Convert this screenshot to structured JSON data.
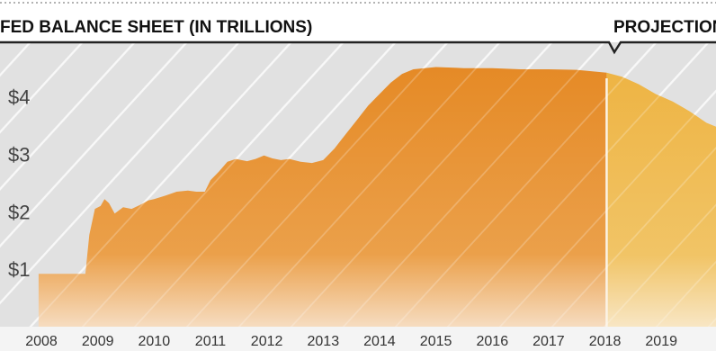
{
  "header": {
    "title": "FED BALANCE SHEET (IN TRILLIONS)",
    "projection_label": "PROJECTION"
  },
  "colors": {
    "actual_fill": "#e8922e",
    "projection_fill": "#f0bb48",
    "background": "#e1e1e1",
    "stripe": "#f6f6f6",
    "rule": "#222222"
  },
  "chart_data": {
    "type": "area",
    "title": "FED BALANCE SHEET (IN TRILLIONS)",
    "ylabel": "",
    "xlabel": "",
    "ylim": [
      0,
      4.95
    ],
    "xlim": [
      2007.95,
      2019.97
    ],
    "y_ticks": [
      1,
      2,
      3,
      4
    ],
    "y_tick_labels": [
      "$1",
      "$2",
      "$3",
      "$4"
    ],
    "x_ticks": [
      2008,
      2009,
      2010,
      2011,
      2012,
      2013,
      2014,
      2015,
      2016,
      2017,
      2018,
      2019
    ],
    "x_tick_labels": [
      "2008",
      "2009",
      "2010",
      "2011",
      "2012",
      "2013",
      "2014",
      "2015",
      "2016",
      "2017",
      "2018",
      "2019"
    ],
    "grid": false,
    "projection_start": 2018.03,
    "series": [
      {
        "segment": "actual",
        "x": [
          2007.95,
          2008.78,
          2008.85,
          2008.95,
          2009.05,
          2009.12,
          2009.2,
          2009.3,
          2009.45,
          2009.6,
          2009.75,
          2009.9,
          2010.0,
          2010.2,
          2010.4,
          2010.6,
          2010.75,
          2010.9,
          2011.0,
          2011.15,
          2011.3,
          2011.45,
          2011.55,
          2011.65,
          2011.8,
          2011.95,
          2012.1,
          2012.25,
          2012.4,
          2012.6,
          2012.8,
          2013.0,
          2013.2,
          2013.4,
          2013.6,
          2013.8,
          2014.0,
          2014.2,
          2014.4,
          2014.6,
          2014.8,
          2015.0,
          2015.5,
          2016.0,
          2016.5,
          2017.0,
          2017.5,
          2018.03
        ],
        "y": [
          0.92,
          0.92,
          1.6,
          2.05,
          2.1,
          2.22,
          2.15,
          1.97,
          2.08,
          2.05,
          2.12,
          2.2,
          2.22,
          2.28,
          2.35,
          2.37,
          2.35,
          2.35,
          2.55,
          2.7,
          2.87,
          2.92,
          2.9,
          2.88,
          2.92,
          2.98,
          2.93,
          2.9,
          2.92,
          2.87,
          2.85,
          2.9,
          3.1,
          3.35,
          3.6,
          3.85,
          4.05,
          4.25,
          4.4,
          4.48,
          4.5,
          4.52,
          4.5,
          4.5,
          4.48,
          4.48,
          4.47,
          4.42
        ]
      },
      {
        "segment": "projection",
        "x": [
          2018.03,
          2018.3,
          2018.6,
          2018.9,
          2019.2,
          2019.5,
          2019.8,
          2019.97
        ],
        "y": [
          4.42,
          4.35,
          4.22,
          4.05,
          3.92,
          3.75,
          3.55,
          3.48
        ]
      }
    ]
  }
}
